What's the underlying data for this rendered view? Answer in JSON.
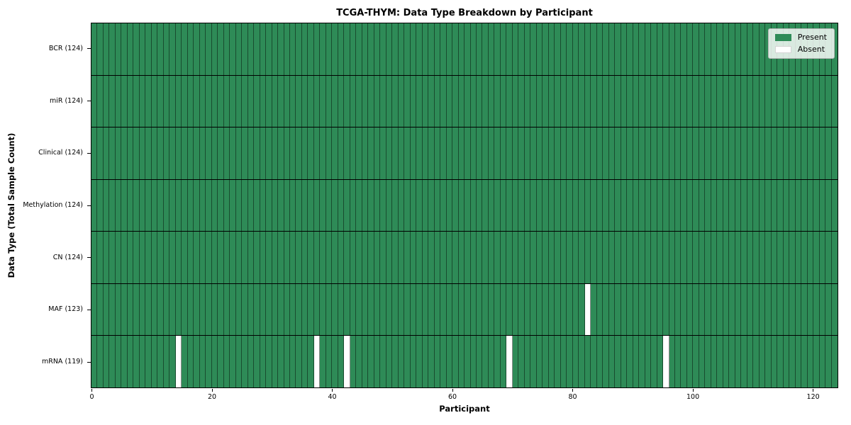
{
  "chart_data": {
    "type": "heatmap",
    "title": "TCGA-THYM: Data Type Breakdown by Participant",
    "xlabel": "Participant",
    "ylabel": "Data Type (Total Sample Count)",
    "n_participants": 124,
    "xlim": [
      0,
      124
    ],
    "x_ticks": [
      0,
      20,
      40,
      60,
      80,
      100,
      120
    ],
    "grid": "cell-borders",
    "rows": [
      {
        "data_type": "BCR",
        "label": "BCR (124)",
        "present_count": 124,
        "absent_participants": []
      },
      {
        "data_type": "miR",
        "label": "miR (124)",
        "present_count": 124,
        "absent_participants": []
      },
      {
        "data_type": "Clinical",
        "label": "Clinical (124)",
        "present_count": 124,
        "absent_participants": []
      },
      {
        "data_type": "Methylation",
        "label": "Methylation (124)",
        "present_count": 124,
        "absent_participants": []
      },
      {
        "data_type": "CN",
        "label": "CN (124)",
        "present_count": 124,
        "absent_participants": []
      },
      {
        "data_type": "MAF",
        "label": "MAF (123)",
        "present_count": 123,
        "absent_participants": [
          82
        ]
      },
      {
        "data_type": "mRNA",
        "label": "mRNA (119)",
        "present_count": 119,
        "absent_participants": [
          14,
          37,
          42,
          69,
          95
        ]
      }
    ],
    "legend": {
      "position": "upper right",
      "entries": [
        {
          "label": "Present",
          "color": "#2e8b57"
        },
        {
          "label": "Absent",
          "color": "#ffffff"
        }
      ]
    },
    "colors": {
      "present": "#2e8b57",
      "absent": "#ffffff",
      "cell_border": "rgba(0,0,0,0.45)",
      "row_border": "#000000",
      "background": "#ffffff"
    }
  }
}
